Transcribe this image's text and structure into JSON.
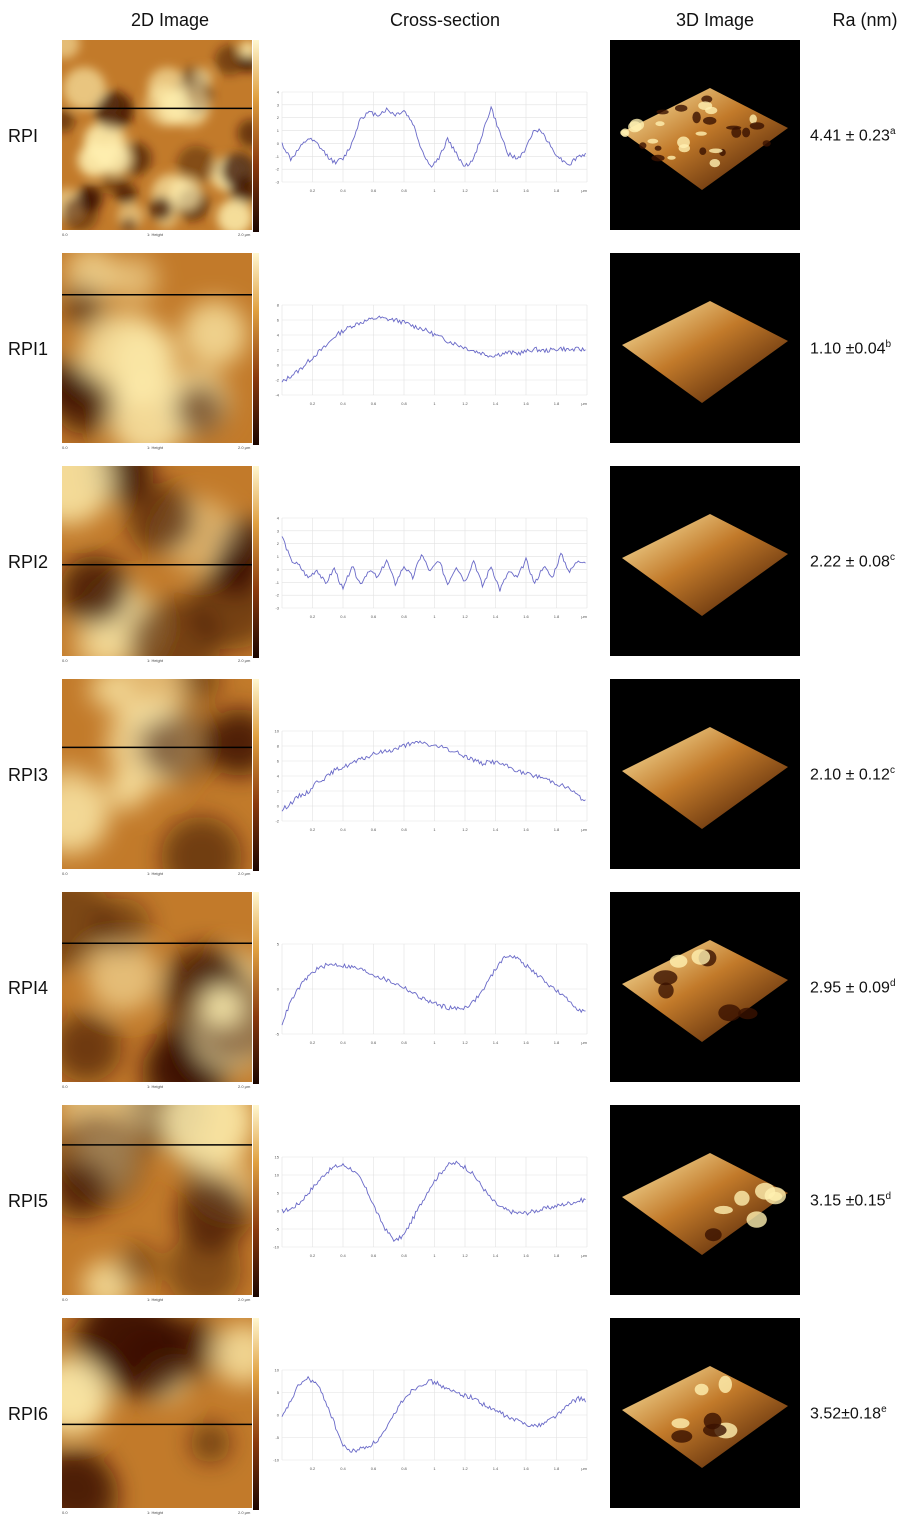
{
  "headers": {
    "img2d": "2D Image",
    "cross": "Cross-section",
    "img3d": "3D Image",
    "ra": "Ra (nm)"
  },
  "rows": [
    {
      "label": "RPI",
      "ra": "4.41 ± 0.23",
      "sup": "a",
      "line_frac": 0.36,
      "seed": 1,
      "profile": [
        0,
        -1.5,
        -0.5,
        0.5,
        0,
        -1,
        -1.8,
        -1.5,
        0,
        2.5,
        3,
        2.8,
        3.3,
        2.8,
        3.2,
        2,
        -0.5,
        -2.2,
        -1.5,
        0.5,
        -1,
        -2.2,
        -1.5,
        1,
        3.5,
        1,
        -1,
        -1.5,
        -0.5,
        1.5,
        1,
        -0.5,
        -1.5,
        -2,
        -1.2,
        -1
      ],
      "yticks": [
        "4",
        "3",
        "2",
        "1",
        "0",
        "-1",
        "-2",
        "-3"
      ]
    },
    {
      "label": "RPI1",
      "ra": "1.10 ±0.04",
      "sup": "b",
      "line_frac": 0.22,
      "seed": 2,
      "profile": [
        -4,
        -3.2,
        -2.5,
        -1.5,
        -0.5,
        0.3,
        1.5,
        2.2,
        2.8,
        3.2,
        3.5,
        3.8,
        3.6,
        3.5,
        3.2,
        2.8,
        2.5,
        2,
        1.5,
        1,
        0.6,
        0.2,
        -0.2,
        -0.5,
        -0.8,
        -0.6,
        -0.4,
        -0.5,
        -0.3,
        0,
        -0.2,
        -0.1,
        0.1,
        -0.1,
        0,
        -0.1
      ],
      "yticks": [
        "8",
        "6",
        "4",
        "2",
        "0",
        "-2",
        "-4"
      ]
    },
    {
      "label": "RPI2",
      "ra": "2.22 ± 0.08",
      "sup": "c",
      "line_frac": 0.52,
      "seed": 3,
      "profile": [
        3,
        1,
        0.5,
        -0.5,
        0.2,
        -1,
        0.3,
        -1.5,
        0.5,
        -1,
        0.2,
        -0.5,
        1,
        -1,
        0.5,
        -0.5,
        1.5,
        0,
        1,
        -1,
        0.5,
        -0.8,
        1,
        -1.2,
        0.5,
        -1.5,
        0,
        -0.5,
        1,
        -1,
        0.5,
        -0.5,
        1.5,
        0,
        1,
        0.8
      ],
      "yticks": [
        "4",
        "3",
        "2",
        "1",
        "0",
        "-1",
        "-2",
        "-3"
      ]
    },
    {
      "label": "RPI3",
      "ra": "2.10 ± 0.12",
      "sup": "c",
      "line_frac": 0.36,
      "seed": 4,
      "profile": [
        -4,
        -3,
        -2,
        -1.5,
        0,
        0.5,
        1.5,
        2,
        2.5,
        3,
        3.5,
        4,
        4.2,
        4.5,
        5,
        5.2,
        5.5,
        5,
        4.8,
        4.5,
        4,
        3.5,
        3,
        2.5,
        2.8,
        2.5,
        2,
        1.5,
        1,
        0.8,
        0.5,
        0,
        -0.5,
        -1,
        -2,
        -3
      ],
      "yticks": [
        "10",
        "8",
        "6",
        "4",
        "2",
        "0",
        "-2"
      ]
    },
    {
      "label": "RPI4",
      "ra": "2.95 ± 0.09",
      "sup": "d",
      "line_frac": 0.27,
      "seed": 5,
      "profile": [
        -5,
        -2,
        0,
        1.5,
        2.5,
        3,
        3.2,
        3,
        2.8,
        2.5,
        2,
        1.5,
        1,
        0.5,
        0,
        -0.8,
        -1.5,
        -2,
        -2.5,
        -2.8,
        -3,
        -2.8,
        -2,
        -0.5,
        1.5,
        3.5,
        4.5,
        4,
        3,
        2,
        1,
        0,
        -1,
        -2,
        -3,
        -3.5
      ],
      "yticks": [
        "5",
        "0",
        "-5"
      ]
    },
    {
      "label": "RPI5",
      "ra": "3.15 ±0.15",
      "sup": "d",
      "line_frac": 0.21,
      "seed": 6,
      "profile": [
        -2,
        -1.5,
        0,
        2.5,
        5,
        7.5,
        9,
        9.5,
        8.5,
        6,
        2,
        -3,
        -7,
        -9.5,
        -8,
        -4,
        0,
        4,
        7,
        9.5,
        10,
        9,
        7,
        4,
        1,
        -1,
        -2,
        -2.5,
        -2.5,
        -2,
        -1.5,
        -1,
        -0.5,
        0,
        0.5,
        1
      ],
      "yticks": [
        "15",
        "10",
        "5",
        "0",
        "-5",
        "-10"
      ]
    },
    {
      "label": "RPI6",
      "ra": "3.52±0.18",
      "sup": "e",
      "line_frac": 0.56,
      "seed": 7,
      "profile": [
        -1,
        2,
        5,
        6,
        5,
        2,
        -2,
        -6,
        -7,
        -6.5,
        -6,
        -5,
        -3,
        0,
        2.5,
        4,
        5,
        5.5,
        5,
        4,
        3.5,
        3,
        2.5,
        1.5,
        0.5,
        0,
        -1,
        -1.5,
        -2,
        -2.5,
        -2,
        -1,
        0,
        1.5,
        2.5,
        2
      ],
      "yticks": [
        "10",
        "5",
        "0",
        "-5",
        "-10"
      ]
    }
  ],
  "xticks": [
    "0.2",
    "0.4",
    "0.6",
    "0.8",
    "1",
    "1.2",
    "1.4",
    "1.6",
    "1.8"
  ],
  "x_unit": "μm",
  "axis_labels": {
    "left": "0.0",
    "mid": "1: Height",
    "right": "2.0 μm"
  },
  "colors": {
    "afm_light": "#fff0b0",
    "afm_mid": "#c27a2a",
    "afm_dark": "#3a1200",
    "profile_line": "#6a6ac8"
  }
}
